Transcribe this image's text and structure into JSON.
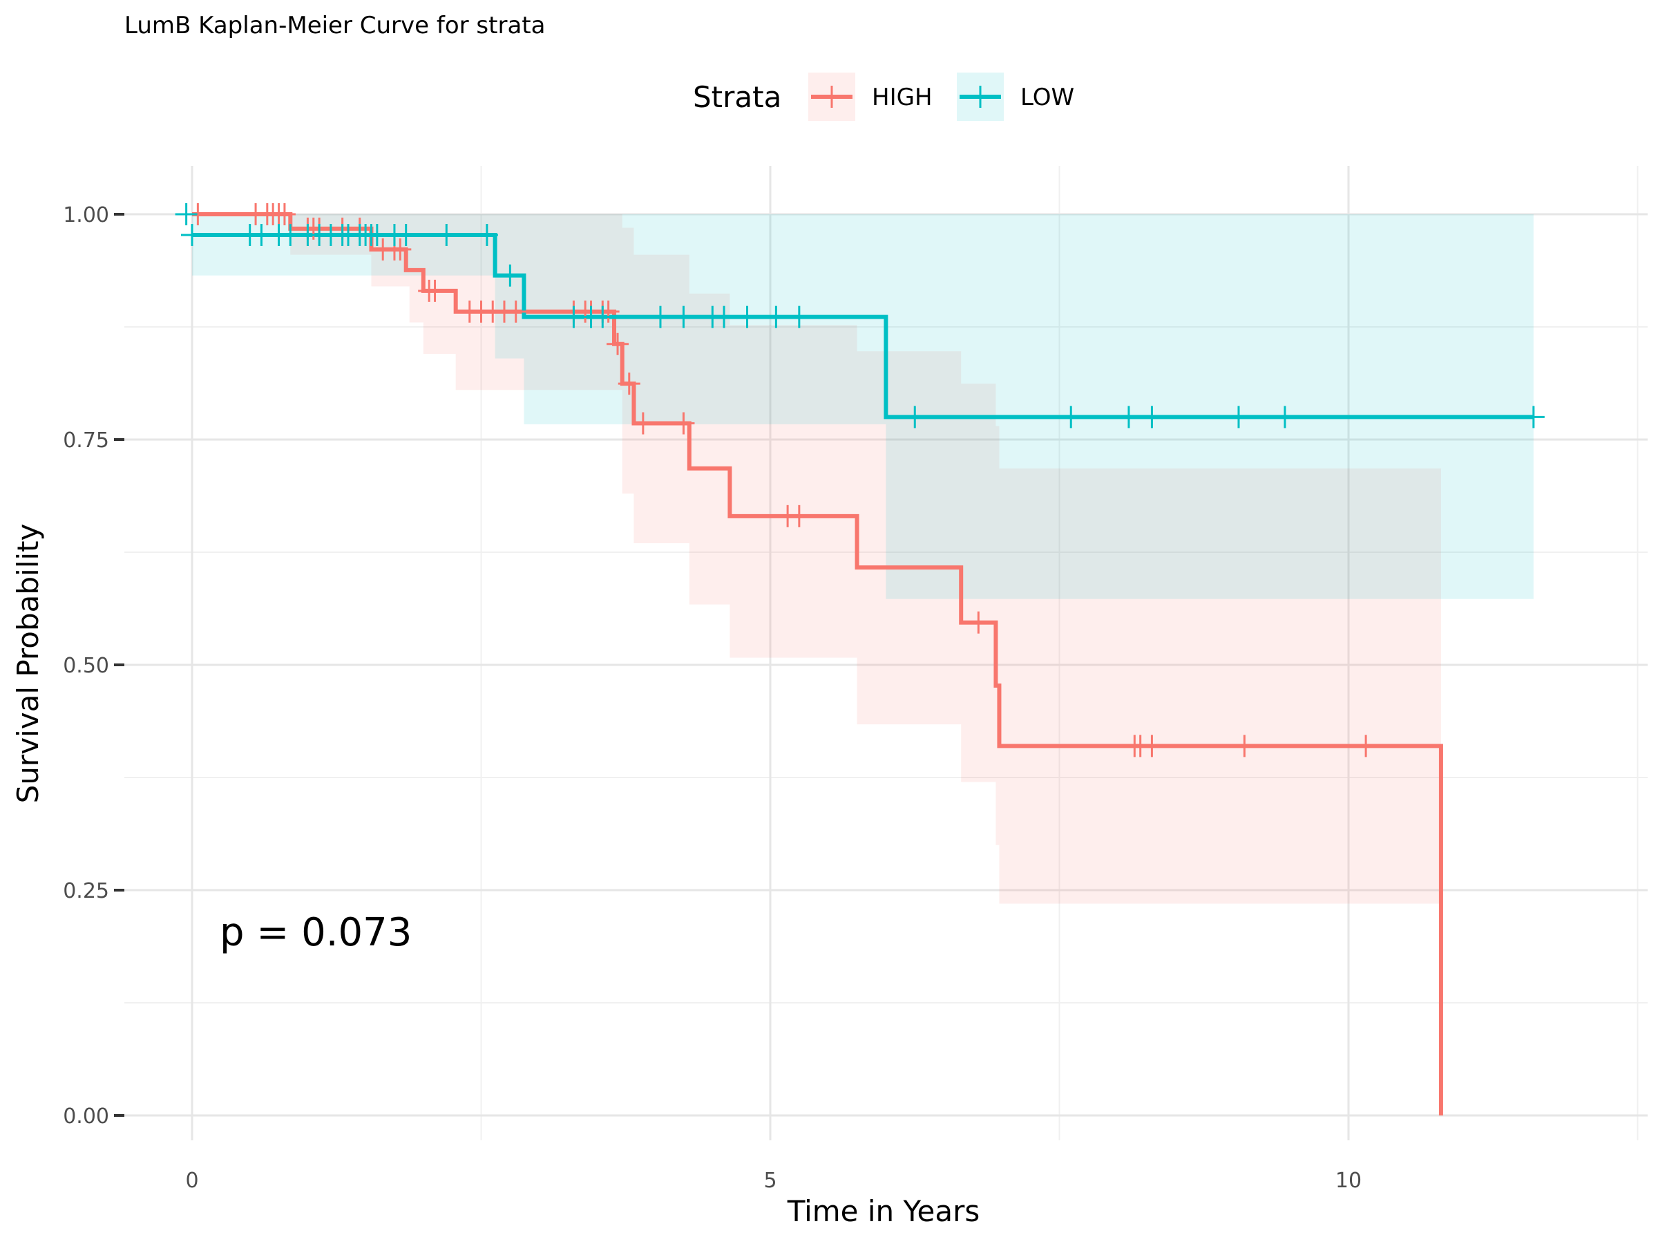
{
  "chart_data": {
    "type": "line",
    "subtype": "kaplan-meier step survival curve with confidence bands and censor marks",
    "title": "LumB Kaplan-Meier Curve for strata",
    "xlabel": "Time in Years",
    "ylabel": "Survival Probability",
    "xlim": [
      -0.6,
      12.7
    ],
    "ylim": [
      -0.035,
      1.05
    ],
    "x_ticks": [
      0,
      5,
      10
    ],
    "x_tick_labels": [
      "0",
      "5",
      "10"
    ],
    "y_ticks": [
      0,
      0.25,
      0.5,
      0.75,
      1.0
    ],
    "y_tick_labels": [
      "0.00",
      "0.25",
      "0.50",
      "0.75",
      "1.00"
    ],
    "grid": true,
    "legend": {
      "title": "Strata",
      "position": "top"
    },
    "annotation": "p = 0.073",
    "series": [
      {
        "name": "HIGH",
        "color": "#F8766D",
        "band_color": "#FDE9E7",
        "steps": [
          [
            0,
            1.0
          ],
          [
            0.85,
            0.984
          ],
          [
            1.55,
            0.961
          ],
          [
            1.85,
            0.938
          ],
          [
            2.0,
            0.915
          ],
          [
            2.28,
            0.892
          ],
          [
            3.65,
            0.856
          ],
          [
            3.72,
            0.812
          ],
          [
            3.82,
            0.768
          ],
          [
            4.3,
            0.718
          ],
          [
            4.65,
            0.665
          ],
          [
            5.75,
            0.608
          ],
          [
            6.65,
            0.547
          ],
          [
            6.95,
            0.477
          ],
          [
            6.98,
            0.41
          ],
          [
            10.8,
            0.0
          ]
        ],
        "lower": [
          [
            0,
            1.0
          ],
          [
            0.85,
            0.955
          ],
          [
            1.55,
            0.92
          ],
          [
            1.88,
            0.88
          ],
          [
            2.0,
            0.845
          ],
          [
            2.28,
            0.805
          ],
          [
            3.72,
            0.69
          ],
          [
            3.82,
            0.635
          ],
          [
            4.3,
            0.567
          ],
          [
            4.65,
            0.508
          ],
          [
            5.75,
            0.434
          ],
          [
            6.65,
            0.37
          ],
          [
            6.95,
            0.3
          ],
          [
            6.98,
            0.235
          ],
          [
            10.8,
            0.235
          ]
        ],
        "upper": [
          [
            0,
            1.0
          ],
          [
            3.65,
            1.0
          ],
          [
            3.72,
            0.985
          ],
          [
            3.82,
            0.955
          ],
          [
            4.3,
            0.912
          ],
          [
            4.65,
            0.877
          ],
          [
            5.75,
            0.848
          ],
          [
            6.65,
            0.812
          ],
          [
            6.95,
            0.765
          ],
          [
            6.98,
            0.718
          ],
          [
            10.8,
            0.718
          ]
        ],
        "censor_times": [
          [
            0.05,
            1.0
          ],
          [
            0.55,
            1.0
          ],
          [
            0.65,
            1.0
          ],
          [
            0.7,
            1.0
          ],
          [
            0.75,
            1.0
          ],
          [
            0.8,
            1.0
          ],
          [
            1.0,
            0.984
          ],
          [
            1.05,
            0.984
          ],
          [
            1.1,
            0.984
          ],
          [
            1.3,
            0.984
          ],
          [
            1.45,
            0.984
          ],
          [
            1.65,
            0.961
          ],
          [
            1.75,
            0.961
          ],
          [
            1.8,
            0.961
          ],
          [
            2.05,
            0.915
          ],
          [
            2.1,
            0.915
          ],
          [
            2.4,
            0.892
          ],
          [
            2.5,
            0.892
          ],
          [
            2.6,
            0.892
          ],
          [
            2.7,
            0.892
          ],
          [
            2.8,
            0.892
          ],
          [
            3.3,
            0.892
          ],
          [
            3.4,
            0.892
          ],
          [
            3.45,
            0.892
          ],
          [
            3.55,
            0.892
          ],
          [
            3.6,
            0.892
          ],
          [
            3.68,
            0.856
          ],
          [
            3.78,
            0.812
          ],
          [
            3.9,
            0.768
          ],
          [
            4.25,
            0.768
          ],
          [
            5.15,
            0.665
          ],
          [
            5.25,
            0.665
          ],
          [
            6.8,
            0.547
          ],
          [
            8.15,
            0.41
          ],
          [
            8.2,
            0.41
          ],
          [
            8.3,
            0.41
          ],
          [
            9.1,
            0.41
          ],
          [
            10.15,
            0.41
          ]
        ]
      },
      {
        "name": "LOW",
        "color": "#00BFC4",
        "band_color": "#E2F6F8",
        "steps": [
          [
            0,
            0.977
          ],
          [
            2.62,
            0.932
          ],
          [
            2.87,
            0.886
          ],
          [
            6.0,
            0.775
          ],
          [
            11.6,
            0.775
          ]
        ],
        "lower": [
          [
            0,
            0.932
          ],
          [
            2.62,
            0.84
          ],
          [
            2.87,
            0.767
          ],
          [
            6.0,
            0.573
          ],
          [
            11.6,
            0.573
          ]
        ],
        "upper": [
          [
            0,
            1.0
          ],
          [
            11.6,
            1.0
          ]
        ],
        "censor_times": [
          [
            -0.05,
            1.0
          ],
          [
            0.0,
            0.977
          ],
          [
            0.5,
            0.977
          ],
          [
            0.6,
            0.977
          ],
          [
            0.75,
            0.977
          ],
          [
            0.85,
            0.977
          ],
          [
            1.0,
            0.977
          ],
          [
            1.1,
            0.977
          ],
          [
            1.2,
            0.977
          ],
          [
            1.3,
            0.977
          ],
          [
            1.35,
            0.977
          ],
          [
            1.45,
            0.977
          ],
          [
            1.5,
            0.977
          ],
          [
            1.55,
            0.977
          ],
          [
            1.6,
            0.977
          ],
          [
            1.75,
            0.977
          ],
          [
            1.85,
            0.977
          ],
          [
            2.2,
            0.977
          ],
          [
            2.55,
            0.977
          ],
          [
            2.75,
            0.932
          ],
          [
            3.3,
            0.886
          ],
          [
            3.45,
            0.886
          ],
          [
            3.55,
            0.886
          ],
          [
            4.05,
            0.886
          ],
          [
            4.25,
            0.886
          ],
          [
            4.5,
            0.886
          ],
          [
            4.6,
            0.886
          ],
          [
            4.8,
            0.886
          ],
          [
            5.05,
            0.886
          ],
          [
            5.25,
            0.886
          ],
          [
            6.25,
            0.775
          ],
          [
            7.6,
            0.775
          ],
          [
            8.1,
            0.775
          ],
          [
            8.3,
            0.775
          ],
          [
            9.05,
            0.775
          ],
          [
            9.45,
            0.775
          ],
          [
            11.6,
            0.775
          ]
        ]
      }
    ]
  }
}
